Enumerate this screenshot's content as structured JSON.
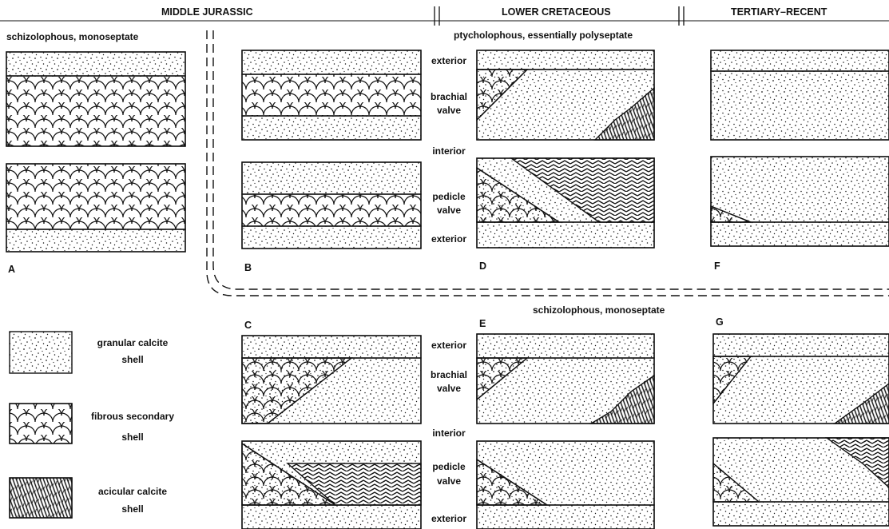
{
  "periods": {
    "middle_jurassic": "MIDDLE JURASSIC",
    "lower_cretaceous": "LOWER CRETACEOUS",
    "tertiary_recent": "TERTIARY–RECENT"
  },
  "lophophores": {
    "schizolophous_top": "schizolophous, monoseptate",
    "ptycholophous": "ptycholophous, essentially polyseptate",
    "schizolophous_mid": "schizolophous, monoseptate"
  },
  "valve_labels": {
    "exterior": "exterior",
    "brachial_1": "brachial",
    "brachial_2": "valve",
    "interior": "interior",
    "pedicle_1": "pedicle",
    "pedicle_2": "valve"
  },
  "panel_letters": {
    "A": "A",
    "B": "B",
    "C": "C",
    "D": "D",
    "E": "E",
    "F": "F",
    "G": "G"
  },
  "legend": {
    "granular_1": "granular calcite",
    "granular_2": "shell",
    "fibrous_1": "fibrous secondary",
    "fibrous_2": "shell",
    "acicular_1": "acicular calcite",
    "acicular_2": "shell"
  }
}
